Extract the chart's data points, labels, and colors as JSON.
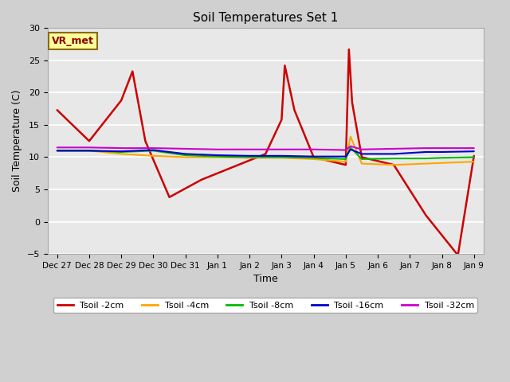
{
  "title": "Soil Temperatures Set 1",
  "xlabel": "Time",
  "ylabel": "Soil Temperature (C)",
  "ylim": [
    -5,
    30
  ],
  "fig_bg": "#d0d0d0",
  "plot_bg": "#e8e8e8",
  "annotation_label": "VR_met",
  "x_tick_labels": [
    "Dec 27",
    "Dec 28",
    "Dec 29",
    "Dec 30",
    "Dec 31",
    "Jan 1",
    "Jan 2",
    "Jan 3",
    "Jan 4",
    "Jan 5",
    "Jan 6",
    "Jan 7",
    "Jan 8",
    "Jan 9"
  ],
  "series": {
    "Tsoil -2cm": {
      "color": "#cc0000"
    },
    "Tsoil -4cm": {
      "color": "#ffa500"
    },
    "Tsoil -8cm": {
      "color": "#00bb00"
    },
    "Tsoil -16cm": {
      "color": "#0000cc"
    },
    "Tsoil -32cm": {
      "color": "#cc00cc"
    }
  },
  "tsoil2_x": [
    0,
    1,
    2,
    2.35,
    2.75,
    3.5,
    4.5,
    5.5,
    6.5,
    7.0,
    7.1,
    7.4,
    8.0,
    9.0,
    9.1,
    9.2,
    9.5,
    10.5,
    11.5,
    12.5,
    13.0
  ],
  "tsoil2_y": [
    17.3,
    12.5,
    18.8,
    23.3,
    12.5,
    3.8,
    6.5,
    8.5,
    10.5,
    15.8,
    24.2,
    17.3,
    10.0,
    8.8,
    26.7,
    18.5,
    10.0,
    8.8,
    1.0,
    -5.2,
    10.2
  ],
  "tsoil4_x": [
    0,
    1,
    2,
    3,
    4,
    5,
    6,
    7,
    8,
    9,
    9.15,
    9.5,
    10.5,
    11.5,
    12,
    13
  ],
  "tsoil4_y": [
    11.0,
    11.0,
    10.5,
    10.2,
    10.0,
    10.0,
    9.9,
    9.9,
    9.7,
    9.3,
    13.2,
    9.0,
    8.8,
    9.0,
    9.1,
    9.3
  ],
  "tsoil8_x": [
    0,
    1,
    2,
    3,
    4,
    5,
    6,
    7,
    8,
    9,
    9.15,
    9.5,
    10.5,
    11.5,
    12,
    13
  ],
  "tsoil8_y": [
    11.0,
    11.0,
    10.8,
    11.0,
    10.3,
    10.1,
    10.0,
    10.0,
    9.9,
    9.7,
    11.5,
    9.7,
    9.8,
    9.8,
    9.9,
    10.0
  ],
  "tsoil16_x": [
    0,
    1,
    2,
    3,
    4,
    5,
    6,
    7,
    8,
    9,
    9.15,
    9.5,
    10.5,
    11.5,
    12,
    13
  ],
  "tsoil16_y": [
    11.0,
    11.0,
    10.9,
    11.1,
    10.5,
    10.3,
    10.2,
    10.2,
    10.1,
    10.1,
    11.2,
    10.5,
    10.5,
    10.8,
    10.8,
    10.9
  ],
  "tsoil32_x": [
    0,
    1,
    2,
    3,
    4,
    5,
    6,
    7,
    8,
    9,
    9.15,
    9.5,
    10.5,
    11.5,
    12,
    13
  ],
  "tsoil32_y": [
    11.5,
    11.5,
    11.4,
    11.4,
    11.3,
    11.2,
    11.2,
    11.2,
    11.2,
    11.1,
    11.7,
    11.2,
    11.3,
    11.4,
    11.4,
    11.4
  ]
}
